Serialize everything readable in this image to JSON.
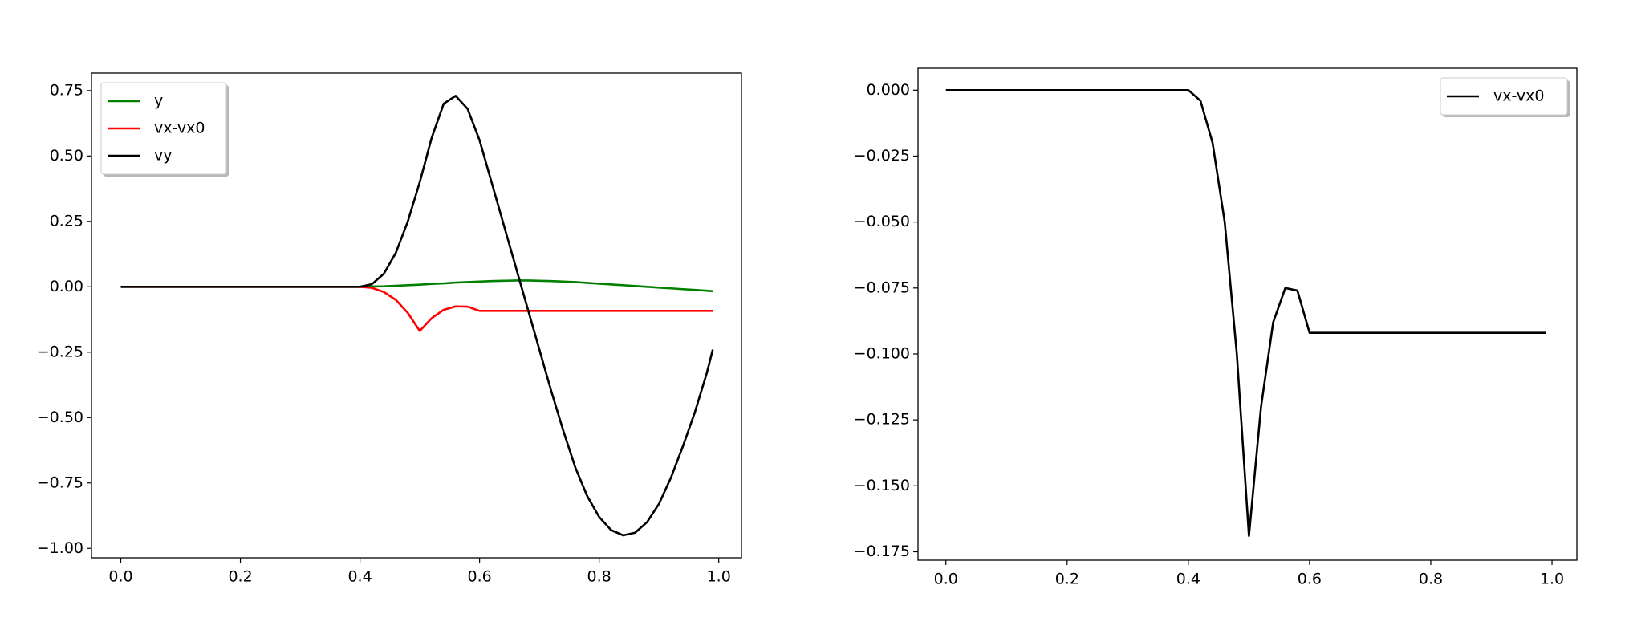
{
  "chart_data": [
    {
      "type": "line",
      "legend": "upper left",
      "x": [
        0,
        0.02,
        0.04,
        0.06,
        0.08,
        0.1,
        0.12,
        0.14,
        0.16,
        0.18,
        0.2,
        0.22,
        0.24,
        0.26,
        0.28,
        0.3,
        0.32,
        0.34,
        0.36,
        0.38,
        0.4,
        0.42,
        0.44,
        0.46,
        0.48,
        0.5,
        0.52,
        0.54,
        0.56,
        0.58,
        0.6,
        0.62,
        0.64,
        0.66,
        0.68,
        0.7,
        0.72,
        0.74,
        0.76,
        0.78,
        0.8,
        0.82,
        0.84,
        0.86,
        0.88,
        0.9,
        0.92,
        0.94,
        0.96,
        0.98,
        0.99
      ],
      "xlim": [
        -0.049,
        1.038
      ],
      "xticks": [
        {
          "value": 0,
          "label": "0.0"
        },
        {
          "value": 0.2,
          "label": "0.2"
        },
        {
          "value": 0.4,
          "label": "0.4"
        },
        {
          "value": 0.6,
          "label": "0.6"
        },
        {
          "value": 0.8,
          "label": "0.8"
        },
        {
          "value": 1,
          "label": "1.0"
        }
      ],
      "ylim": [
        -1.036,
        0.817
      ],
      "yticks": [
        {
          "value": -1,
          "label": "−1.00"
        },
        {
          "value": -0.75,
          "label": "−0.75"
        },
        {
          "value": -0.5,
          "label": "−0.50"
        },
        {
          "value": -0.25,
          "label": "−0.25"
        },
        {
          "value": 0,
          "label": "0.00"
        },
        {
          "value": 0.25,
          "label": "0.25"
        },
        {
          "value": 0.5,
          "label": "0.50"
        },
        {
          "value": 0.75,
          "label": "0.75"
        }
      ],
      "series": [
        {
          "name": "y",
          "color": "#008000",
          "values": [
            0,
            0,
            0,
            0,
            0,
            0,
            0,
            0,
            0,
            0,
            0,
            0,
            0,
            0,
            0,
            0,
            0,
            0,
            0,
            0,
            0,
            0.001,
            0.002,
            0.004,
            0.006,
            0.008,
            0.011,
            0.013,
            0.016,
            0.018,
            0.02,
            0.022,
            0.023,
            0.024,
            0.024,
            0.023,
            0.022,
            0.02,
            0.018,
            0.015,
            0.012,
            0.009,
            0.006,
            0.003,
            0.0,
            -0.003,
            -0.006,
            -0.009,
            -0.012,
            -0.015,
            -0.017
          ]
        },
        {
          "name": "vx-vx0",
          "color": "#ff0000",
          "values": [
            0,
            0,
            0,
            0,
            0,
            0,
            0,
            0,
            0,
            0,
            0,
            0,
            0,
            0,
            0,
            0,
            0,
            0,
            0,
            0,
            0,
            -0.004,
            -0.02,
            -0.05,
            -0.1,
            -0.169,
            -0.12,
            -0.088,
            -0.075,
            -0.076,
            -0.092,
            -0.092,
            -0.092,
            -0.092,
            -0.092,
            -0.092,
            -0.092,
            -0.092,
            -0.092,
            -0.092,
            -0.092,
            -0.092,
            -0.092,
            -0.092,
            -0.092,
            -0.092,
            -0.092,
            -0.092,
            -0.092,
            -0.092,
            -0.092
          ]
        },
        {
          "name": "vy",
          "color": "#000000",
          "values": [
            0,
            0,
            0,
            0,
            0,
            0,
            0,
            0,
            0,
            0,
            0,
            0,
            0,
            0,
            0,
            0,
            0,
            0,
            0,
            0,
            0,
            0.01,
            0.05,
            0.13,
            0.25,
            0.4,
            0.57,
            0.7,
            0.73,
            0.68,
            0.56,
            0.4,
            0.24,
            0.08,
            -0.08,
            -0.24,
            -0.4,
            -0.55,
            -0.69,
            -0.8,
            -0.88,
            -0.93,
            -0.95,
            -0.94,
            -0.9,
            -0.83,
            -0.73,
            -0.61,
            -0.48,
            -0.33,
            -0.24
          ]
        }
      ]
    },
    {
      "type": "line",
      "legend": "upper right",
      "x": [
        0,
        0.02,
        0.04,
        0.06,
        0.08,
        0.1,
        0.12,
        0.14,
        0.16,
        0.18,
        0.2,
        0.22,
        0.24,
        0.26,
        0.28,
        0.3,
        0.32,
        0.34,
        0.36,
        0.38,
        0.4,
        0.42,
        0.44,
        0.46,
        0.48,
        0.5,
        0.52,
        0.54,
        0.56,
        0.58,
        0.6,
        0.62,
        0.64,
        0.66,
        0.68,
        0.7,
        0.72,
        0.74,
        0.76,
        0.78,
        0.8,
        0.82,
        0.84,
        0.86,
        0.88,
        0.9,
        0.92,
        0.94,
        0.96,
        0.98,
        0.99
      ],
      "xlim": [
        -0.046,
        1.041
      ],
      "xticks": [
        {
          "value": 0,
          "label": "0.0"
        },
        {
          "value": 0.2,
          "label": "0.2"
        },
        {
          "value": 0.4,
          "label": "0.4"
        },
        {
          "value": 0.6,
          "label": "0.6"
        },
        {
          "value": 0.8,
          "label": "0.8"
        },
        {
          "value": 1,
          "label": "1.0"
        }
      ],
      "ylim": [
        -0.1782,
        0.0083
      ],
      "yticks": [
        {
          "value": -0.175,
          "label": "−0.175"
        },
        {
          "value": -0.15,
          "label": "−0.150"
        },
        {
          "value": -0.125,
          "label": "−0.125"
        },
        {
          "value": -0.1,
          "label": "−0.100"
        },
        {
          "value": -0.075,
          "label": "−0.075"
        },
        {
          "value": -0.05,
          "label": "−0.050"
        },
        {
          "value": -0.025,
          "label": "−0.025"
        },
        {
          "value": 0,
          "label": "0.000"
        }
      ],
      "series": [
        {
          "name": "vx-vx0",
          "color": "#000000",
          "values": [
            0,
            0,
            0,
            0,
            0,
            0,
            0,
            0,
            0,
            0,
            0,
            0,
            0,
            0,
            0,
            0,
            0,
            0,
            0,
            0,
            0,
            -0.004,
            -0.02,
            -0.05,
            -0.1,
            -0.169,
            -0.12,
            -0.088,
            -0.075,
            -0.076,
            -0.092,
            -0.092,
            -0.092,
            -0.092,
            -0.092,
            -0.092,
            -0.092,
            -0.092,
            -0.092,
            -0.092,
            -0.092,
            -0.092,
            -0.092,
            -0.092,
            -0.092,
            -0.092,
            -0.092,
            -0.092,
            -0.092,
            -0.092,
            -0.092
          ]
        }
      ]
    }
  ]
}
